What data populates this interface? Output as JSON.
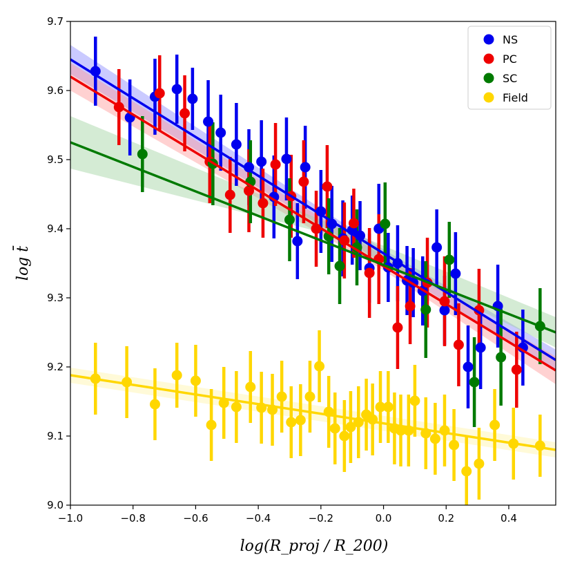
{
  "chart_data": {
    "type": "scatter",
    "title": "",
    "xlabel": "log(R_proj / R_200)",
    "ylabel": "log t̄",
    "xlim": [
      -1.0,
      0.55
    ],
    "ylim": [
      9.0,
      9.7
    ],
    "xticks": [
      -1.0,
      -0.8,
      -0.6,
      -0.4,
      -0.2,
      0.0,
      0.2,
      0.4
    ],
    "xtick_labels": [
      "−1.0",
      "−0.8",
      "−0.6",
      "−0.4",
      "−0.2",
      "0.0",
      "0.2",
      "0.4"
    ],
    "yticks": [
      9.0,
      9.1,
      9.2,
      9.3,
      9.4,
      9.5,
      9.6,
      9.7
    ],
    "ytick_labels": [
      "9.0",
      "9.1",
      "9.2",
      "9.3",
      "9.4",
      "9.5",
      "9.6",
      "9.7"
    ],
    "legend_position": "top-right",
    "series": [
      {
        "name": "NS",
        "color": "#0000ee",
        "band_color": "#8a8aff",
        "fit": {
          "x": [
            -1.0,
            0.55
          ],
          "y": [
            9.645,
            9.21
          ],
          "band": [
            [
              -1.0,
              9.624,
              9.666
            ],
            [
              0.0,
              9.35,
              9.37
            ],
            [
              0.55,
              9.195,
              9.225
            ]
          ]
        },
        "points": [
          {
            "x": -0.92,
            "y": 9.628,
            "err": 0.05
          },
          {
            "x": -0.81,
            "y": 9.561,
            "err": 0.055
          },
          {
            "x": -0.73,
            "y": 9.591,
            "err": 0.055
          },
          {
            "x": -0.66,
            "y": 9.602,
            "err": 0.05
          },
          {
            "x": -0.61,
            "y": 9.588,
            "err": 0.045
          },
          {
            "x": -0.56,
            "y": 9.555,
            "err": 0.06
          },
          {
            "x": -0.52,
            "y": 9.539,
            "err": 0.055
          },
          {
            "x": -0.47,
            "y": 9.522,
            "err": 0.06
          },
          {
            "x": -0.43,
            "y": 9.489,
            "err": 0.055
          },
          {
            "x": -0.39,
            "y": 9.497,
            "err": 0.06
          },
          {
            "x": -0.35,
            "y": 9.446,
            "err": 0.06
          },
          {
            "x": -0.31,
            "y": 9.501,
            "err": 0.06
          },
          {
            "x": -0.275,
            "y": 9.382,
            "err": 0.055
          },
          {
            "x": -0.25,
            "y": 9.489,
            "err": 0.06
          },
          {
            "x": -0.2,
            "y": 9.425,
            "err": 0.06
          },
          {
            "x": -0.165,
            "y": 9.407,
            "err": 0.055
          },
          {
            "x": -0.13,
            "y": 9.386,
            "err": 0.055
          },
          {
            "x": -0.1,
            "y": 9.398,
            "err": 0.05
          },
          {
            "x": -0.075,
            "y": 9.39,
            "err": 0.05
          },
          {
            "x": -0.045,
            "y": 9.343,
            "err": 0.05
          },
          {
            "x": -0.015,
            "y": 9.4,
            "err": 0.065
          },
          {
            "x": 0.015,
            "y": 9.344,
            "err": 0.05
          },
          {
            "x": 0.045,
            "y": 9.35,
            "err": 0.055
          },
          {
            "x": 0.075,
            "y": 9.325,
            "err": 0.05
          },
          {
            "x": 0.095,
            "y": 9.322,
            "err": 0.05
          },
          {
            "x": 0.125,
            "y": 9.31,
            "err": 0.05
          },
          {
            "x": 0.17,
            "y": 9.373,
            "err": 0.055
          },
          {
            "x": 0.195,
            "y": 9.282,
            "err": 0.05
          },
          {
            "x": 0.23,
            "y": 9.335,
            "err": 0.06
          },
          {
            "x": 0.27,
            "y": 9.2,
            "err": 0.06
          },
          {
            "x": 0.31,
            "y": 9.228,
            "err": 0.06
          },
          {
            "x": 0.365,
            "y": 9.288,
            "err": 0.06
          },
          {
            "x": 0.445,
            "y": 9.228,
            "err": 0.055
          }
        ]
      },
      {
        "name": "PC",
        "color": "#ee0000",
        "band_color": "#ff9999",
        "fit": {
          "x": [
            -1.0,
            0.55
          ],
          "y": [
            9.62,
            9.195
          ],
          "band": [
            [
              -1.0,
              9.6,
              9.64
            ],
            [
              0.0,
              9.34,
              9.36
            ],
            [
              0.55,
              9.175,
              9.215
            ]
          ]
        },
        "points": [
          {
            "x": -0.845,
            "y": 9.576,
            "err": 0.055
          },
          {
            "x": -0.715,
            "y": 9.596,
            "err": 0.055
          },
          {
            "x": -0.635,
            "y": 9.567,
            "err": 0.055
          },
          {
            "x": -0.555,
            "y": 9.497,
            "err": 0.06
          },
          {
            "x": -0.49,
            "y": 9.449,
            "err": 0.055
          },
          {
            "x": -0.43,
            "y": 9.455,
            "err": 0.06
          },
          {
            "x": -0.385,
            "y": 9.437,
            "err": 0.05
          },
          {
            "x": -0.345,
            "y": 9.493,
            "err": 0.06
          },
          {
            "x": -0.295,
            "y": 9.447,
            "err": 0.06
          },
          {
            "x": -0.255,
            "y": 9.468,
            "err": 0.06
          },
          {
            "x": -0.215,
            "y": 9.4,
            "err": 0.055
          },
          {
            "x": -0.18,
            "y": 9.461,
            "err": 0.06
          },
          {
            "x": -0.125,
            "y": 9.383,
            "err": 0.055
          },
          {
            "x": -0.095,
            "y": 9.408,
            "err": 0.05
          },
          {
            "x": -0.045,
            "y": 9.336,
            "err": 0.065
          },
          {
            "x": -0.015,
            "y": 9.356,
            "err": 0.065
          },
          {
            "x": 0.045,
            "y": 9.257,
            "err": 0.06
          },
          {
            "x": 0.085,
            "y": 9.288,
            "err": 0.055
          },
          {
            "x": 0.14,
            "y": 9.322,
            "err": 0.065
          },
          {
            "x": 0.195,
            "y": 9.295,
            "err": 0.065
          },
          {
            "x": 0.24,
            "y": 9.232,
            "err": 0.06
          },
          {
            "x": 0.305,
            "y": 9.282,
            "err": 0.06
          },
          {
            "x": 0.425,
            "y": 9.196,
            "err": 0.055
          }
        ]
      },
      {
        "name": "SC",
        "color": "#007a00",
        "band_color": "#9fd39f",
        "fit": {
          "x": [
            -1.0,
            0.55
          ],
          "y": [
            9.525,
            9.25
          ],
          "band": [
            [
              -1.0,
              9.487,
              9.563
            ],
            [
              -0.2,
              9.395,
              9.413
            ],
            [
              0.55,
              9.228,
              9.272
            ]
          ]
        },
        "points": [
          {
            "x": -0.77,
            "y": 9.508,
            "err": 0.055
          },
          {
            "x": -0.545,
            "y": 9.494,
            "err": 0.06
          },
          {
            "x": -0.425,
            "y": 9.468,
            "err": 0.06
          },
          {
            "x": -0.3,
            "y": 9.413,
            "err": 0.06
          },
          {
            "x": -0.175,
            "y": 9.389,
            "err": 0.055
          },
          {
            "x": -0.085,
            "y": 9.373,
            "err": 0.055
          },
          {
            "x": -0.14,
            "y": 9.346,
            "err": 0.055
          },
          {
            "x": 0.005,
            "y": 9.407,
            "err": 0.06
          },
          {
            "x": 0.135,
            "y": 9.283,
            "err": 0.07
          },
          {
            "x": 0.21,
            "y": 9.355,
            "err": 0.055
          },
          {
            "x": 0.29,
            "y": 9.178,
            "err": 0.065
          },
          {
            "x": 0.375,
            "y": 9.214,
            "err": 0.07
          },
          {
            "x": 0.5,
            "y": 9.259,
            "err": 0.055
          }
        ]
      },
      {
        "name": "Field",
        "color": "#ffd700",
        "band_color": "#fff3a8",
        "fit": {
          "x": [
            -1.0,
            0.55
          ],
          "y": [
            9.188,
            9.08
          ],
          "band": [
            [
              -1.0,
              9.177,
              9.199
            ],
            [
              0.55,
              9.069,
              9.091
            ]
          ]
        },
        "points": [
          {
            "x": -0.92,
            "y": 9.183,
            "err": 0.052
          },
          {
            "x": -0.82,
            "y": 9.178,
            "err": 0.052
          },
          {
            "x": -0.73,
            "y": 9.146,
            "err": 0.052
          },
          {
            "x": -0.66,
            "y": 9.188,
            "err": 0.047
          },
          {
            "x": -0.6,
            "y": 9.18,
            "err": 0.052
          },
          {
            "x": -0.55,
            "y": 9.116,
            "err": 0.052
          },
          {
            "x": -0.51,
            "y": 9.148,
            "err": 0.052
          },
          {
            "x": -0.47,
            "y": 9.142,
            "err": 0.052
          },
          {
            "x": -0.425,
            "y": 9.171,
            "err": 0.052
          },
          {
            "x": -0.39,
            "y": 9.141,
            "err": 0.052
          },
          {
            "x": -0.355,
            "y": 9.138,
            "err": 0.052
          },
          {
            "x": -0.325,
            "y": 9.157,
            "err": 0.052
          },
          {
            "x": -0.295,
            "y": 9.12,
            "err": 0.052
          },
          {
            "x": -0.265,
            "y": 9.123,
            "err": 0.052
          },
          {
            "x": -0.235,
            "y": 9.157,
            "err": 0.052
          },
          {
            "x": -0.205,
            "y": 9.201,
            "err": 0.052
          },
          {
            "x": -0.175,
            "y": 9.135,
            "err": 0.052
          },
          {
            "x": -0.155,
            "y": 9.111,
            "err": 0.052
          },
          {
            "x": -0.125,
            "y": 9.1,
            "err": 0.052
          },
          {
            "x": -0.105,
            "y": 9.113,
            "err": 0.052
          },
          {
            "x": -0.08,
            "y": 9.12,
            "err": 0.052
          },
          {
            "x": -0.055,
            "y": 9.131,
            "err": 0.052
          },
          {
            "x": -0.035,
            "y": 9.124,
            "err": 0.052
          },
          {
            "x": -0.01,
            "y": 9.142,
            "err": 0.052
          },
          {
            "x": 0.015,
            "y": 9.142,
            "err": 0.052
          },
          {
            "x": 0.035,
            "y": 9.111,
            "err": 0.052
          },
          {
            "x": 0.055,
            "y": 9.108,
            "err": 0.052
          },
          {
            "x": 0.08,
            "y": 9.108,
            "err": 0.052
          },
          {
            "x": 0.1,
            "y": 9.151,
            "err": 0.052
          },
          {
            "x": 0.135,
            "y": 9.104,
            "err": 0.052
          },
          {
            "x": 0.165,
            "y": 9.096,
            "err": 0.052
          },
          {
            "x": 0.195,
            "y": 9.108,
            "err": 0.052
          },
          {
            "x": 0.225,
            "y": 9.087,
            "err": 0.052
          },
          {
            "x": 0.265,
            "y": 9.049,
            "err": 0.052
          },
          {
            "x": 0.305,
            "y": 9.06,
            "err": 0.052
          },
          {
            "x": 0.355,
            "y": 9.116,
            "err": 0.052
          },
          {
            "x": 0.415,
            "y": 9.089,
            "err": 0.052
          },
          {
            "x": 0.5,
            "y": 9.086,
            "err": 0.045
          }
        ]
      }
    ]
  }
}
